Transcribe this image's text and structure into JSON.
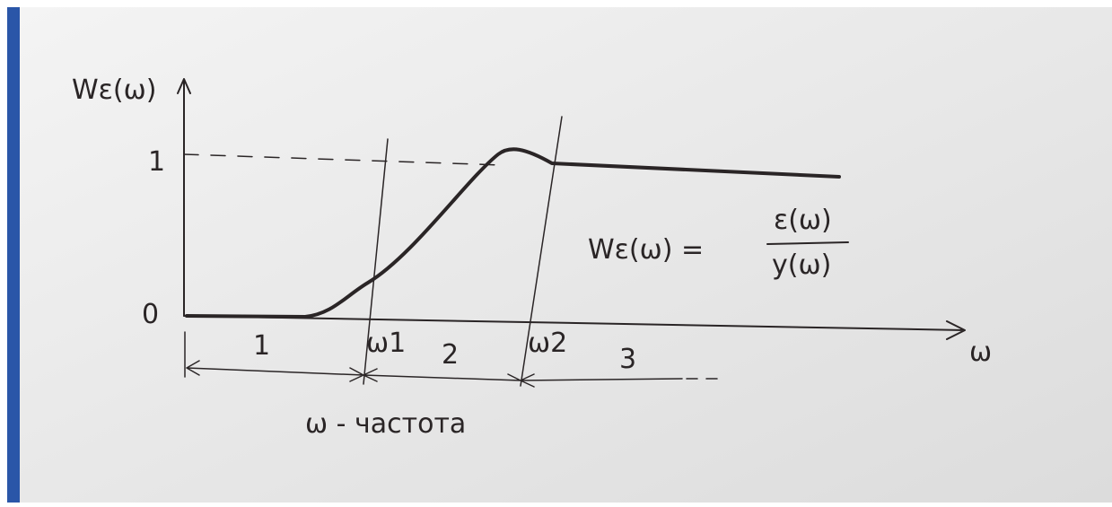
{
  "axes": {
    "y_label": "Wε(ω)",
    "x_label": "ω",
    "y_ticks": [
      "1",
      "0"
    ]
  },
  "markers": [
    "ω1",
    "ω2"
  ],
  "regions": [
    "1",
    "2",
    "3"
  ],
  "formula": {
    "lhs": "Wε(ω) =",
    "numerator": "ε(ω)",
    "denominator": "y(ω)"
  },
  "caption": "ω - частота"
}
